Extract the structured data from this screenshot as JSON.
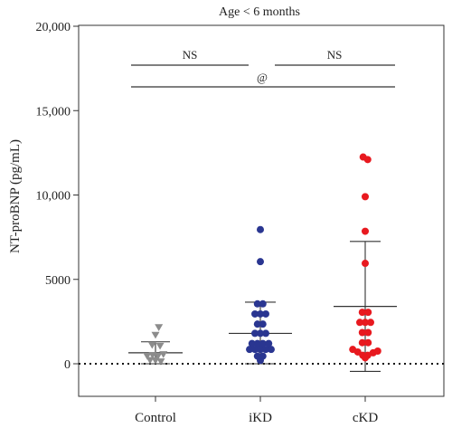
{
  "chart_data": {
    "type": "scatter",
    "title": "Age < 6 months",
    "xlabel": "",
    "ylabel": "NT-proBNP (pg/mL)",
    "ylim": [
      -1500,
      20000
    ],
    "yticks": [
      0,
      5000,
      10000,
      15000,
      20000
    ],
    "ytick_labels": [
      "0",
      "5000",
      "10,000",
      "15,000",
      "20,000"
    ],
    "categories": [
      "Control",
      "iKD",
      "cKD"
    ],
    "reference_line": 0,
    "series": [
      {
        "category": "Control",
        "marker": "triangle-down",
        "color": "#8c8c8c",
        "mean": 650,
        "sd_upper": 1300,
        "sd_lower": 0,
        "points": [
          {
            "x": 0.08,
            "y": 2150
          },
          {
            "x": 0.0,
            "y": 1700
          },
          {
            "x": -0.08,
            "y": 1100
          },
          {
            "x": 0.11,
            "y": 1050
          },
          {
            "x": -0.2,
            "y": 450
          },
          {
            "x": -0.07,
            "y": 500
          },
          {
            "x": 0.06,
            "y": 450
          },
          {
            "x": 0.19,
            "y": 550
          },
          {
            "x": -0.13,
            "y": 200
          },
          {
            "x": 0.0,
            "y": 180
          },
          {
            "x": 0.13,
            "y": 120
          }
        ]
      },
      {
        "category": "iKD",
        "marker": "circle",
        "color": "#2a3691",
        "mean": 1800,
        "sd_upper": 3650,
        "sd_lower": 0,
        "points": [
          {
            "x": 0.0,
            "y": 7950
          },
          {
            "x": 0.0,
            "y": 6050
          },
          {
            "x": -0.07,
            "y": 3550
          },
          {
            "x": 0.06,
            "y": 3550
          },
          {
            "x": -0.13,
            "y": 2950
          },
          {
            "x": 0.0,
            "y": 2950
          },
          {
            "x": 0.13,
            "y": 2950
          },
          {
            "x": -0.07,
            "y": 2350
          },
          {
            "x": 0.06,
            "y": 2350
          },
          {
            "x": -0.13,
            "y": 1800
          },
          {
            "x": 0.0,
            "y": 1800
          },
          {
            "x": 0.13,
            "y": 1800
          },
          {
            "x": -0.2,
            "y": 1200
          },
          {
            "x": -0.07,
            "y": 1200
          },
          {
            "x": 0.06,
            "y": 1200
          },
          {
            "x": 0.2,
            "y": 1200
          },
          {
            "x": -0.26,
            "y": 850
          },
          {
            "x": -0.13,
            "y": 850
          },
          {
            "x": 0.0,
            "y": 850
          },
          {
            "x": 0.13,
            "y": 850
          },
          {
            "x": 0.26,
            "y": 850
          },
          {
            "x": -0.07,
            "y": 450
          },
          {
            "x": 0.06,
            "y": 450
          },
          {
            "x": 0.0,
            "y": 200
          }
        ]
      },
      {
        "category": "cKD",
        "marker": "circle",
        "color": "#e8191f",
        "mean": 3400,
        "sd_upper": 7250,
        "sd_lower": -450,
        "points": [
          {
            "x": -0.05,
            "y": 12250
          },
          {
            "x": 0.06,
            "y": 12100
          },
          {
            "x": 0.0,
            "y": 9900
          },
          {
            "x": 0.0,
            "y": 7850
          },
          {
            "x": 0.0,
            "y": 5950
          },
          {
            "x": -0.07,
            "y": 3050
          },
          {
            "x": 0.07,
            "y": 3050
          },
          {
            "x": -0.13,
            "y": 2450
          },
          {
            "x": 0.0,
            "y": 2450
          },
          {
            "x": 0.13,
            "y": 2450
          },
          {
            "x": -0.07,
            "y": 1850
          },
          {
            "x": 0.07,
            "y": 1850
          },
          {
            "x": -0.07,
            "y": 1250
          },
          {
            "x": 0.07,
            "y": 1250
          },
          {
            "x": -0.3,
            "y": 850
          },
          {
            "x": -0.18,
            "y": 700
          },
          {
            "x": 0.19,
            "y": 650
          },
          {
            "x": 0.3,
            "y": 750
          },
          {
            "x": -0.06,
            "y": 500
          },
          {
            "x": 0.06,
            "y": 500
          },
          {
            "x": 0.0,
            "y": 350
          }
        ]
      }
    ],
    "annotations": [
      {
        "label": "NS",
        "from": "Control",
        "to": "iKD"
      },
      {
        "label": "NS",
        "from": "iKD",
        "to": "cKD"
      },
      {
        "label": "@",
        "from": "Control",
        "to": "cKD"
      }
    ]
  }
}
